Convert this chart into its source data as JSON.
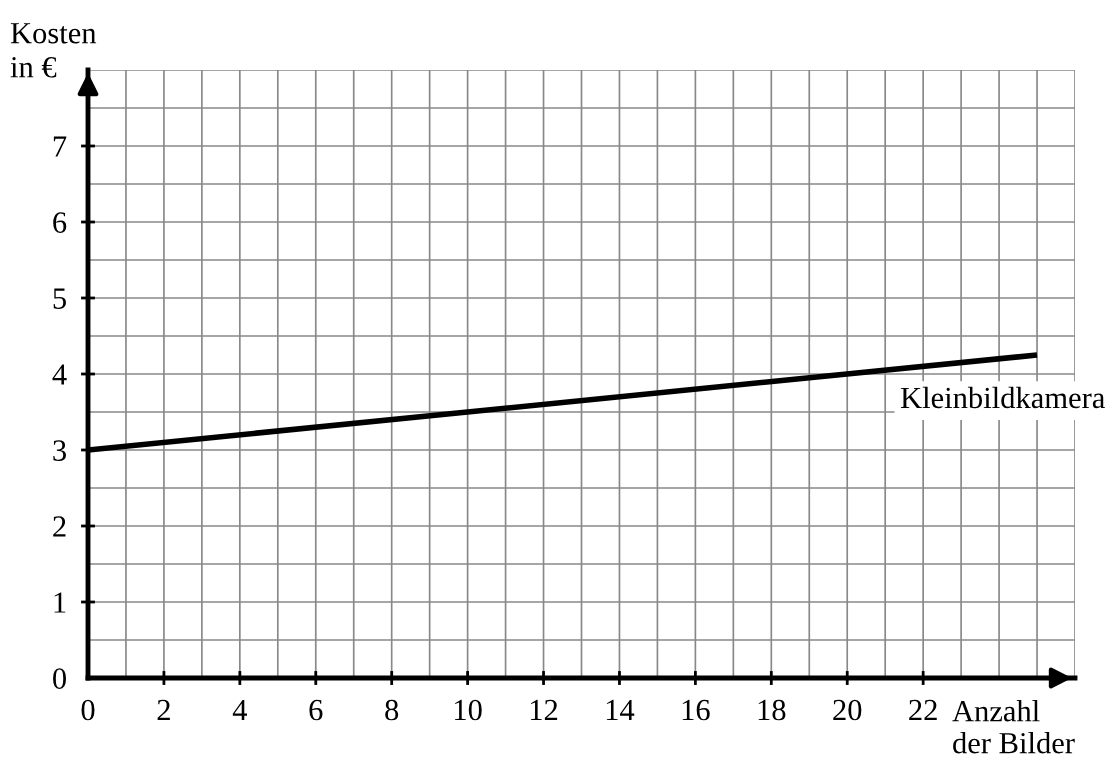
{
  "chart_data": {
    "type": "line",
    "xlabel": "Anzahl\nder Bilder",
    "ylabel": "Kosten\nin €",
    "xlim": [
      0,
      26
    ],
    "ylim": [
      0,
      8
    ],
    "xticks": [
      0,
      2,
      4,
      6,
      8,
      10,
      12,
      14,
      16,
      18,
      20,
      22
    ],
    "yticks": [
      0,
      1,
      2,
      3,
      4,
      5,
      6,
      7
    ],
    "grid": true,
    "line_style": "solid",
    "marker": "none",
    "series": [
      {
        "name": "Kleinbildkamera",
        "color": "#000000",
        "x": [
          0,
          25
        ],
        "values": [
          3,
          4.25
        ]
      }
    ]
  }
}
